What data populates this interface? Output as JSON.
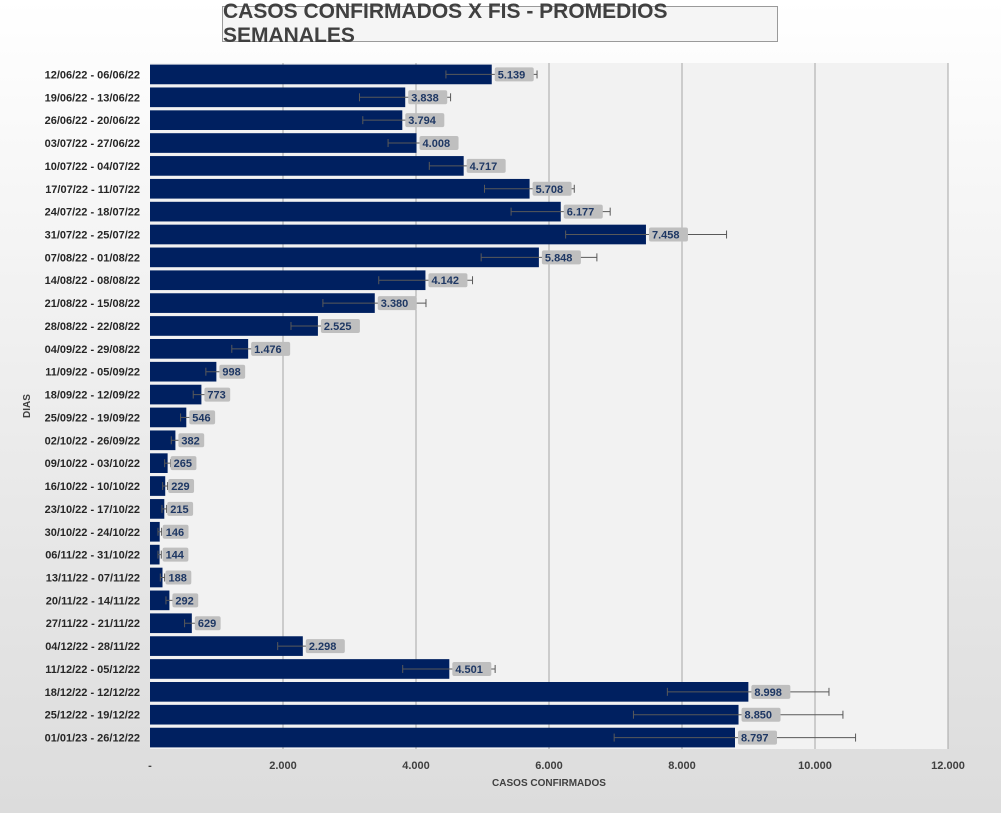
{
  "chart_data": {
    "type": "bar",
    "orientation": "horizontal",
    "title": "CASOS CONFIRMADOS X FIS - PROMEDIOS SEMANALES",
    "xlabel": "CASOS CONFIRMADOS",
    "ylabel": "DIAS",
    "xlim": [
      0,
      12000
    ],
    "xticks": [
      0,
      2000,
      4000,
      6000,
      8000,
      10000,
      12000
    ],
    "xtick_labels": [
      "-",
      "2.000",
      "4.000",
      "6.000",
      "8.000",
      "10.000",
      "12.000"
    ],
    "grid": "vertical",
    "categories": [
      "12/06/22 - 06/06/22",
      "19/06/22 - 13/06/22",
      "26/06/22 - 20/06/22",
      "03/07/22 - 27/06/22",
      "10/07/22 - 04/07/22",
      "17/07/22 - 11/07/22",
      "24/07/22 - 18/07/22",
      "31/07/22 - 25/07/22",
      "07/08/22 - 01/08/22",
      "14/08/22 - 08/08/22",
      "21/08/22 - 15/08/22",
      "28/08/22 - 22/08/22",
      "04/09/22 - 29/08/22",
      "11/09/22 - 05/09/22",
      "18/09/22 - 12/09/22",
      "25/09/22 - 19/09/22",
      "02/10/22 - 26/09/22",
      "09/10/22 - 03/10/22",
      "16/10/22 - 10/10/22",
      "23/10/22 - 17/10/22",
      "30/10/22 - 24/10/22",
      "06/11/22 - 31/10/22",
      "13/11/22 - 07/11/22",
      "20/11/22 - 14/11/22",
      "27/11/22 - 21/11/22",
      "04/12/22 - 28/11/22",
      "11/12/22 - 05/12/22",
      "18/12/22 - 12/12/22",
      "25/12/22 - 19/12/22",
      "01/01/23 - 26/12/22"
    ],
    "values": [
      5139,
      3838,
      3794,
      4008,
      4717,
      5708,
      6177,
      7458,
      5848,
      4142,
      3380,
      2525,
      1476,
      998,
      773,
      546,
      382,
      265,
      229,
      215,
      146,
      144,
      188,
      292,
      629,
      2298,
      4501,
      8998,
      8850,
      8797
    ],
    "value_labels": [
      "5.139",
      "3.838",
      "3.794",
      "4.008",
      "4.717",
      "5.708",
      "6.177",
      "7.458",
      "5.848",
      "4.142",
      "3.380",
      "2.525",
      "1.476",
      "998",
      "773",
      "546",
      "382",
      "265",
      "229",
      "215",
      "146",
      "144",
      "188",
      "292",
      "629",
      "2.298",
      "4.501",
      "8.998",
      "8.850",
      "8.797"
    ],
    "error_low": [
      4450,
      3150,
      3200,
      3580,
      4200,
      5030,
      5430,
      6250,
      4980,
      3440,
      2600,
      2120,
      1230,
      840,
      650,
      460,
      320,
      220,
      190,
      180,
      120,
      120,
      155,
      240,
      520,
      1920,
      3800,
      7780,
      7270,
      6980
    ],
    "error_high": [
      5820,
      4520,
      4330,
      4430,
      5230,
      6380,
      6920,
      8670,
      6720,
      4850,
      4150,
      2930,
      1720,
      1150,
      890,
      630,
      445,
      310,
      265,
      250,
      175,
      170,
      220,
      345,
      740,
      2680,
      5190,
      10210,
      10420,
      10610
    ],
    "bar_color": "#002060",
    "label_box_color": "#bfbfbf"
  }
}
